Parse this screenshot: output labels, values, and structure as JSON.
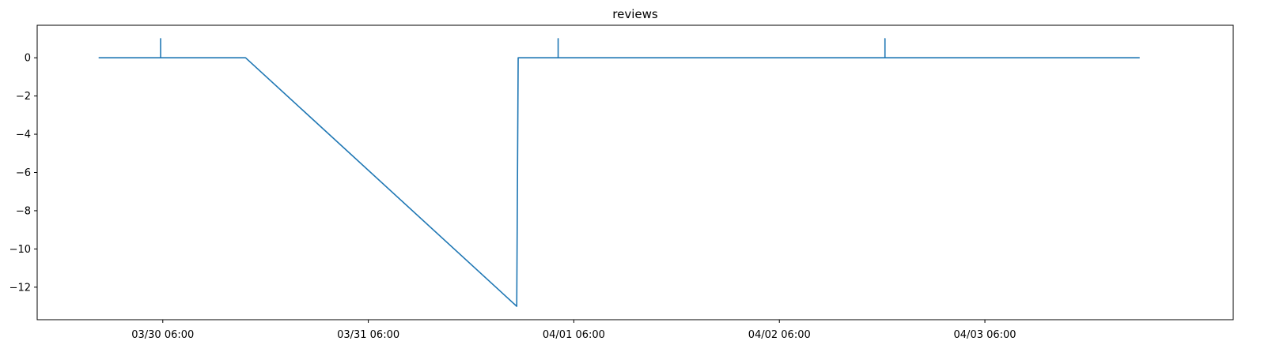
{
  "chart_data": {
    "type": "line",
    "title": "reviews",
    "xlabel": "",
    "ylabel": "",
    "x_tick_labels": [
      "03/30 06:00",
      "03/31 06:00",
      "04/01 06:00",
      "04/02 06:00",
      "04/03 06:00"
    ],
    "x_ticks": [
      "2024-03-30T06:00",
      "2024-03-31T06:00",
      "2024-04-01T06:00",
      "2024-04-02T06:00",
      "2024-04-03T06:00"
    ],
    "xlim": [
      "2024-03-29T15:20",
      "2024-04-04T11:00"
    ],
    "y_ticks": [
      0,
      -2,
      -4,
      -6,
      -8,
      -10,
      -12
    ],
    "ylim": [
      -13.7,
      1.7
    ],
    "grid": false,
    "color": "#1f77b4",
    "series": [
      {
        "x": [
          "2024-03-29T22:35",
          "2024-03-30T05:45",
          "2024-03-30T05:45",
          "2024-03-30T05:45",
          "2024-03-30T15:40",
          "2024-03-31T23:20",
          "2024-03-31T23:30",
          "2024-04-01T04:10",
          "2024-04-01T04:10",
          "2024-04-01T04:10",
          "2024-04-02T18:20",
          "2024-04-02T18:20",
          "2024-04-02T18:20",
          "2024-04-04T00:00"
        ],
        "y": [
          0,
          0,
          1,
          0,
          0,
          -13,
          0,
          0,
          1,
          0,
          0,
          1,
          0,
          0
        ]
      }
    ]
  }
}
